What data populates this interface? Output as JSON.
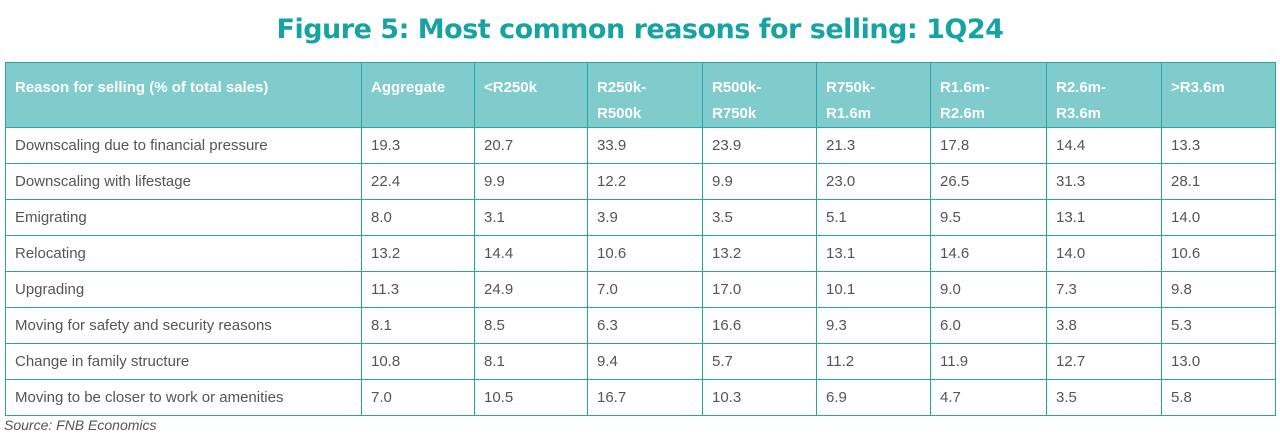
{
  "title": "Figure 5: Most common reasons for selling: 1Q24",
  "chart_data": {
    "type": "table",
    "title": "Figure 5: Most common reasons for selling: 1Q24",
    "columns": [
      "Reason for selling (% of total sales)",
      "Aggregate",
      "<R250k",
      "R250k-R500k",
      "R500k-R750k",
      "R750k-R1.6m",
      "R1.6m-R2.6m",
      "R2.6m-R3.6m",
      ">R3.6m"
    ],
    "rows": [
      [
        "Downscaling due to financial pressure",
        "19.3",
        "20.7",
        "33.9",
        "23.9",
        "21.3",
        "17.8",
        "14.4",
        "13.3"
      ],
      [
        "Downscaling with lifestage",
        "22.4",
        "9.9",
        "12.2",
        "9.9",
        "23.0",
        "26.5",
        "31.3",
        "28.1"
      ],
      [
        "Emigrating",
        "8.0",
        "3.1",
        "3.9",
        "3.5",
        "5.1",
        "9.5",
        "13.1",
        "14.0"
      ],
      [
        "Relocating",
        "13.2",
        "14.4",
        "10.6",
        "13.2",
        "13.1",
        "14.6",
        "14.0",
        "10.6"
      ],
      [
        "Upgrading",
        "11.3",
        "24.9",
        "7.0",
        "17.0",
        "10.1",
        "9.0",
        "7.3",
        "9.8"
      ],
      [
        "Moving for safety and security reasons",
        "8.1",
        "8.5",
        "6.3",
        "16.6",
        "9.3",
        "6.0",
        "3.8",
        "5.3"
      ],
      [
        "Change in family structure",
        "10.8",
        "8.1",
        "9.4",
        "5.7",
        "11.2",
        "11.9",
        "12.7",
        "13.0"
      ],
      [
        "Moving to be closer to work or amenities",
        "7.0",
        "10.5",
        "16.7",
        "10.3",
        "6.9",
        "4.7",
        "3.5",
        "5.8"
      ]
    ],
    "header_color": "#80cbcb",
    "border_color": "#2aa5a5",
    "title_color": "#17a3a3"
  },
  "source": "Source: FNB Economics"
}
